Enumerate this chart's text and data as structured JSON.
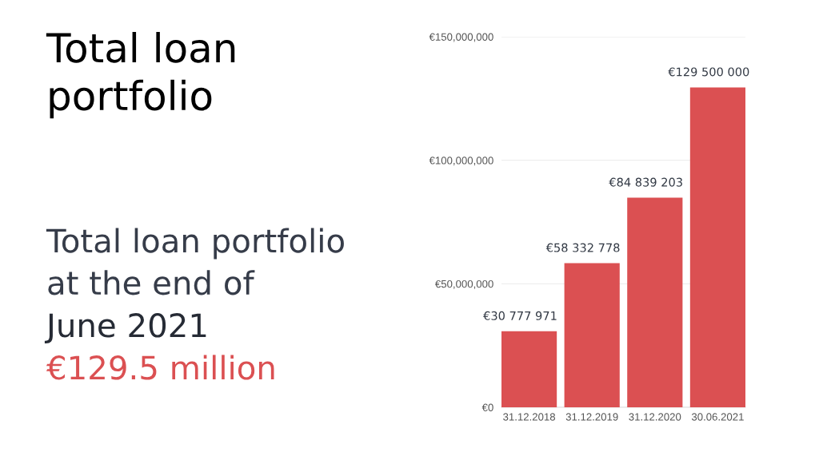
{
  "chart_data": {
    "type": "bar",
    "title": "Total loan\nportfolio",
    "subtitle": "Total loan portfolio\nat the end of",
    "annotations": [
      "June 2021",
      "€129.5 million"
    ],
    "categories": [
      "31.12.2018",
      "31.12.2019",
      "31.12.2020",
      "30.06.2021"
    ],
    "values": [
      30777971,
      58332778,
      84839203,
      129500000
    ],
    "value_labels": [
      "€30 777 971",
      "€58 332 778",
      "€84 839 203",
      "€129 500 000"
    ],
    "color": "#db5052",
    "ylim": [
      0,
      150000000
    ],
    "yticks": [
      {
        "value": 0,
        "label": "€0"
      },
      {
        "value": 50000000,
        "label": "€50,000,000"
      },
      {
        "value": 100000000,
        "label": "€100,000,000"
      },
      {
        "value": 150000000,
        "label": "€150,000,000"
      }
    ],
    "grid": "y"
  }
}
